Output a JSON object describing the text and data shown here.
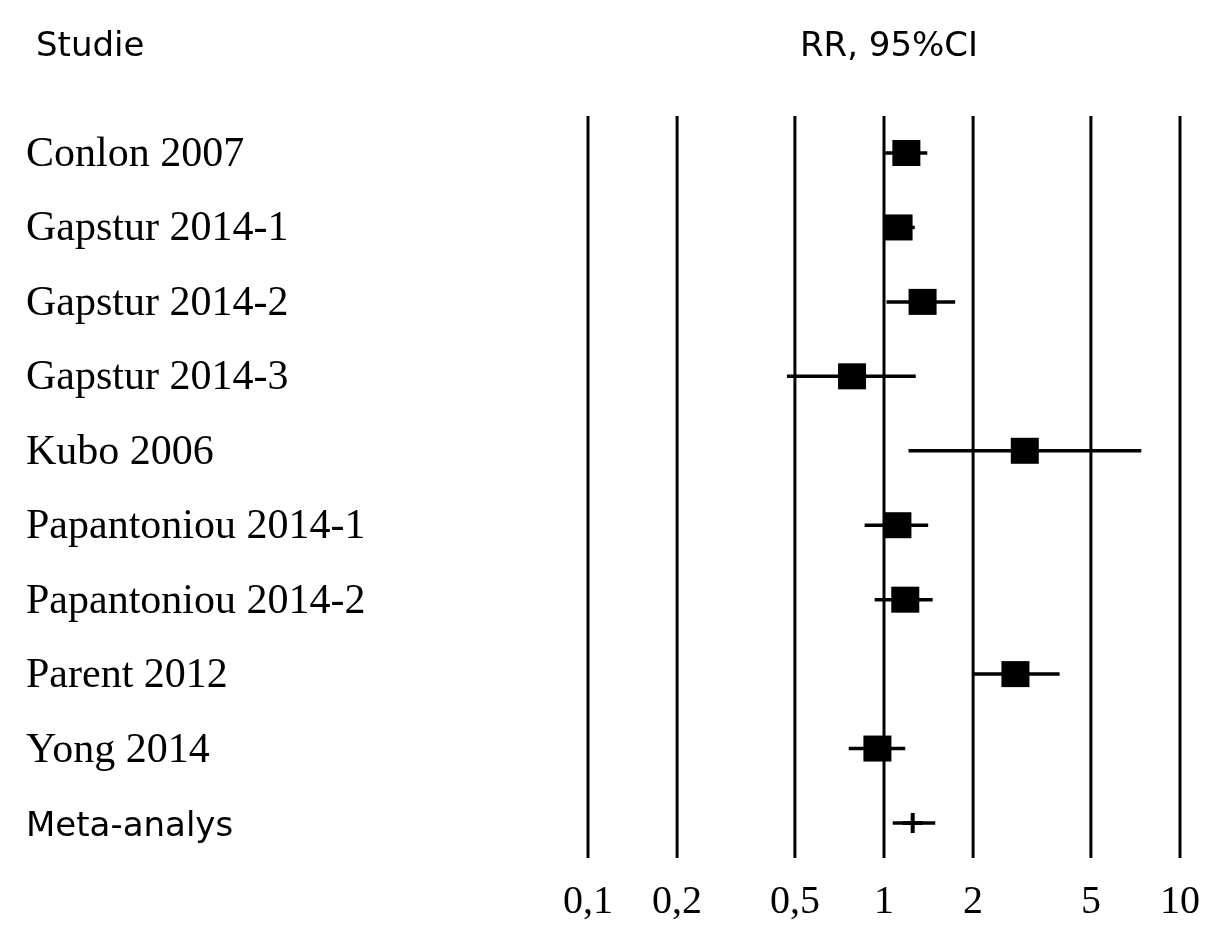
{
  "chart_data": {
    "type": "scatter",
    "orientation": "horizontal",
    "title": "RR, 95%CI",
    "ylabel": "Studie",
    "categories": [
      "Conlon 2007",
      "Gapstur 2014-1",
      "Gapstur 2014-2",
      "Gapstur 2014-3",
      "Kubo 2006",
      "Papantoniou 2014-1",
      "Papantoniou 2014-2",
      "Parent 2012",
      "Yong 2014",
      "Meta-analys"
    ],
    "series": [
      {
        "color": "#000000",
        "marker": "square",
        "values": [
          1.19,
          1.12,
          1.35,
          0.78,
          2.99,
          1.11,
          1.18,
          2.78,
          0.95,
          null
        ],
        "errors": [
          [
            1.01,
            1.4
          ],
          [
            1.0,
            1.27
          ],
          [
            1.02,
            1.74
          ],
          [
            0.47,
            1.28
          ],
          [
            1.21,
            7.4
          ],
          [
            0.86,
            1.41
          ],
          [
            0.93,
            1.46
          ],
          [
            1.99,
            3.92
          ],
          [
            0.76,
            1.18
          ],
          null
        ]
      },
      {
        "color": "#000000",
        "marker": "cross",
        "values": [
          null,
          null,
          null,
          null,
          null,
          null,
          null,
          null,
          null,
          1.25
        ],
        "errors": [
          null,
          null,
          null,
          null,
          null,
          null,
          null,
          null,
          null,
          [
            1.07,
            1.49
          ]
        ]
      }
    ],
    "log": "x",
    "xlim": [
      0.1,
      10
    ],
    "xticks": [
      {
        "value": 0.1,
        "label": "0,1"
      },
      {
        "value": 0.2,
        "label": "0,2"
      },
      {
        "value": 0.5,
        "label": "0,5"
      },
      {
        "value": 1,
        "label": "1"
      },
      {
        "value": 2,
        "label": "2"
      },
      {
        "value": 5,
        "label": "5"
      },
      {
        "value": 10,
        "label": "10"
      }
    ],
    "grid": "x"
  }
}
